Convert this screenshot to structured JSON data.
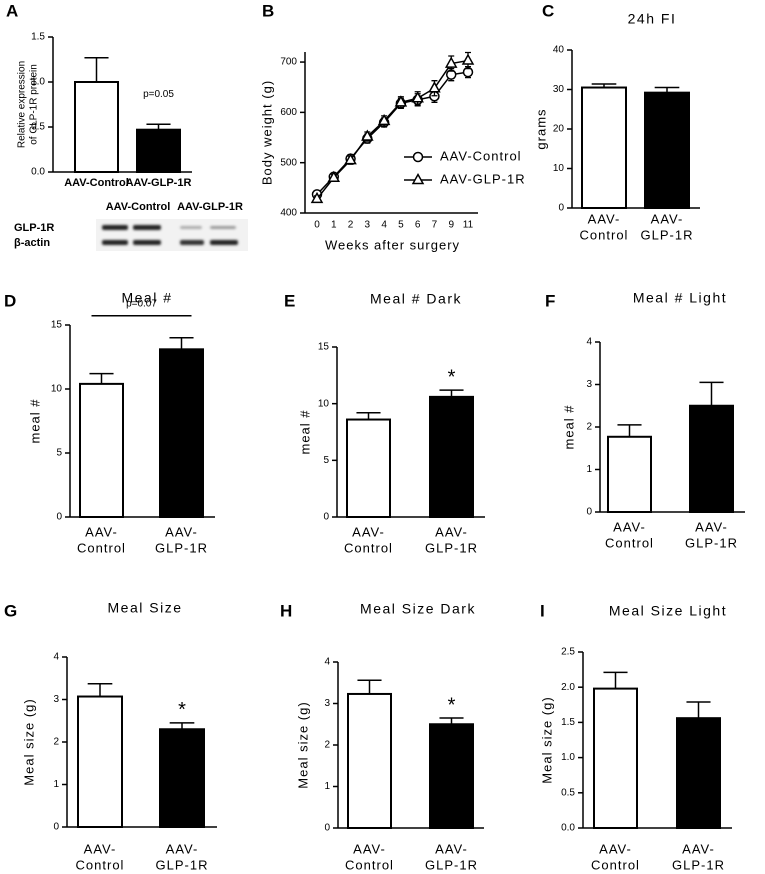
{
  "chart_data": [
    {
      "type": "bar",
      "panel_label": "A",
      "ylabel": [
        "Relative expression",
        "of GLP-1R protein"
      ],
      "categories": [
        "AAV-Control",
        "AAV-GLP-1R"
      ],
      "values": [
        1.0,
        0.47
      ],
      "errors": [
        0.27,
        0.06
      ],
      "colors": [
        "#ffffff",
        "#000000"
      ],
      "ylim": [
        0,
        1.5
      ],
      "yticks": [
        {
          "value": 0,
          "label": "0.0"
        },
        0.5,
        {
          "value": 1,
          "label": "1.0"
        },
        1.5
      ],
      "annotation": {
        "text": "p=0.05",
        "category": 1
      },
      "blot": {
        "lanes": [
          "AAV-Control",
          "AAV-GLP-1R"
        ],
        "rows": [
          "GLP-1R",
          "β-actin"
        ]
      }
    },
    {
      "type": "line",
      "panel_label": "B",
      "xlabel": "Weeks after surgery",
      "ylabel": "Body weight (g)",
      "categories": [
        "0",
        "1",
        "2",
        "3",
        "4",
        "5",
        "6",
        "7",
        "9",
        "11"
      ],
      "series": [
        {
          "name": "AAV-Control",
          "marker": "circle",
          "color": "#000000",
          "values": [
            437,
            472,
            508,
            548,
            580,
            618,
            625,
            632,
            675,
            680
          ],
          "errors": [
            6,
            7,
            8,
            9,
            9,
            10,
            12,
            12,
            12,
            11
          ]
        },
        {
          "name": "AAV-GLP-1R",
          "marker": "triangle",
          "color": "#000000",
          "values": [
            428,
            470,
            505,
            552,
            583,
            620,
            628,
            648,
            697,
            703
          ],
          "errors": [
            6,
            7,
            8,
            9,
            10,
            11,
            13,
            15,
            15,
            16
          ]
        }
      ],
      "ylim": [
        400,
        720
      ],
      "yticks": [
        400,
        500,
        600,
        700
      ]
    },
    {
      "type": "bar",
      "panel_label": "C",
      "title": "24h FI",
      "ylabel": "grams",
      "categories": [
        [
          "AAV-",
          "Control"
        ],
        [
          "AAV-",
          "GLP-1R"
        ]
      ],
      "values": [
        30.5,
        29.2
      ],
      "errors": [
        0.9,
        1.3
      ],
      "colors": [
        "#ffffff",
        "#000000"
      ],
      "ylim": [
        0,
        40
      ],
      "yticks": [
        0,
        10,
        20,
        30,
        40
      ]
    },
    {
      "type": "bar",
      "panel_label": "D",
      "title": "Meal #",
      "ylabel": "meal #",
      "categories": [
        [
          "AAV-",
          "Control"
        ],
        [
          "AAV-",
          "GLP-1R"
        ]
      ],
      "values": [
        10.4,
        13.1
      ],
      "errors": [
        0.8,
        0.9
      ],
      "colors": [
        "#ffffff",
        "#000000"
      ],
      "ylim": [
        0,
        15
      ],
      "yticks": [
        0,
        5,
        10,
        15
      ],
      "annotation": {
        "text": "p=0.07",
        "bracket": true
      }
    },
    {
      "type": "bar",
      "panel_label": "E",
      "title": "Meal # Dark",
      "ylabel": "meal #",
      "categories": [
        [
          "AAV-",
          "Control"
        ],
        [
          "AAV-",
          "GLP-1R"
        ]
      ],
      "values": [
        8.6,
        10.6
      ],
      "errors": [
        0.6,
        0.6
      ],
      "colors": [
        "#ffffff",
        "#000000"
      ],
      "ylim": [
        0,
        15
      ],
      "yticks": [
        0,
        5,
        10,
        15
      ],
      "annotation": {
        "text": "*",
        "category": 1
      }
    },
    {
      "type": "bar",
      "panel_label": "F",
      "title": "Meal # Light",
      "ylabel": "meal #",
      "categories": [
        [
          "AAV-",
          "Control"
        ],
        [
          "AAV-",
          "GLP-1R"
        ]
      ],
      "values": [
        1.77,
        2.5
      ],
      "errors": [
        0.28,
        0.55
      ],
      "colors": [
        "#ffffff",
        "#000000"
      ],
      "ylim": [
        0,
        4
      ],
      "yticks": [
        0,
        1,
        2,
        3,
        4
      ]
    },
    {
      "type": "bar",
      "panel_label": "G",
      "title": "Meal Size",
      "ylabel": "Meal size (g)",
      "categories": [
        [
          "AAV-",
          "Control"
        ],
        [
          "AAV-",
          "GLP-1R"
        ]
      ],
      "values": [
        3.07,
        2.3
      ],
      "errors": [
        0.3,
        0.15
      ],
      "colors": [
        "#ffffff",
        "#000000"
      ],
      "ylim": [
        0,
        4
      ],
      "yticks": [
        0,
        1,
        2,
        3,
        4
      ],
      "annotation": {
        "text": "*",
        "category": 1
      }
    },
    {
      "type": "bar",
      "panel_label": "H",
      "title": "Meal Size Dark",
      "ylabel": "Meal size (g)",
      "categories": [
        [
          "AAV-",
          "Control"
        ],
        [
          "AAV-",
          "GLP-1R"
        ]
      ],
      "values": [
        3.23,
        2.5
      ],
      "errors": [
        0.33,
        0.15
      ],
      "colors": [
        "#ffffff",
        "#000000"
      ],
      "ylim": [
        0,
        4
      ],
      "yticks": [
        0,
        1,
        2,
        3,
        4
      ],
      "annotation": {
        "text": "*",
        "category": 1
      }
    },
    {
      "type": "bar",
      "panel_label": "I",
      "title": "Meal Size Light",
      "ylabel": "Meal size (g)",
      "categories": [
        [
          "AAV-",
          "Control"
        ],
        [
          "AAV-",
          "GLP-1R"
        ]
      ],
      "values": [
        1.98,
        1.56
      ],
      "errors": [
        0.23,
        0.23
      ],
      "colors": [
        "#ffffff",
        "#000000"
      ],
      "ylim": [
        0,
        2.5
      ],
      "yticks": [
        {
          "value": 0,
          "label": "0.0"
        },
        0.5,
        {
          "value": 1,
          "label": "1.0"
        },
        1.5,
        {
          "value": 2,
          "label": "2.0"
        },
        2.5
      ]
    }
  ]
}
